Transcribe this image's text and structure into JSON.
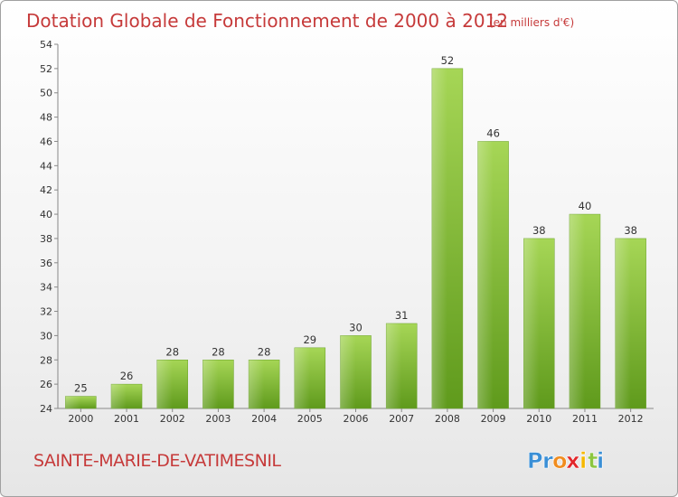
{
  "chart_data": {
    "type": "bar",
    "title": "Dotation Globale de Fonctionnement de 2000 à 2012",
    "subtitle": "(en milliers d'€)",
    "categories": [
      "2000",
      "2001",
      "2002",
      "2003",
      "2004",
      "2005",
      "2006",
      "2007",
      "2008",
      "2009",
      "2010",
      "2011",
      "2012"
    ],
    "values": [
      25,
      26,
      28,
      28,
      28,
      29,
      30,
      31,
      52,
      46,
      38,
      40,
      38
    ],
    "ylim": [
      24,
      54
    ],
    "yticks": [
      24,
      26,
      28,
      30,
      32,
      34,
      36,
      38,
      40,
      42,
      44,
      46,
      48,
      50,
      52,
      54
    ],
    "grid": false,
    "bar_color": "#7cb82f"
  },
  "footer": {
    "commune": "SAINTE-MARIE-DE-VATIMESNIL",
    "brand": {
      "letters": [
        "P",
        "r",
        "o",
        "x",
        "i",
        "t",
        "i"
      ],
      "colors": [
        "#3a8fd6",
        "#3a8fd6",
        "#f08c1e",
        "#e2262a",
        "#f5b800",
        "#8cc63f",
        "#3a8fd6"
      ]
    }
  }
}
